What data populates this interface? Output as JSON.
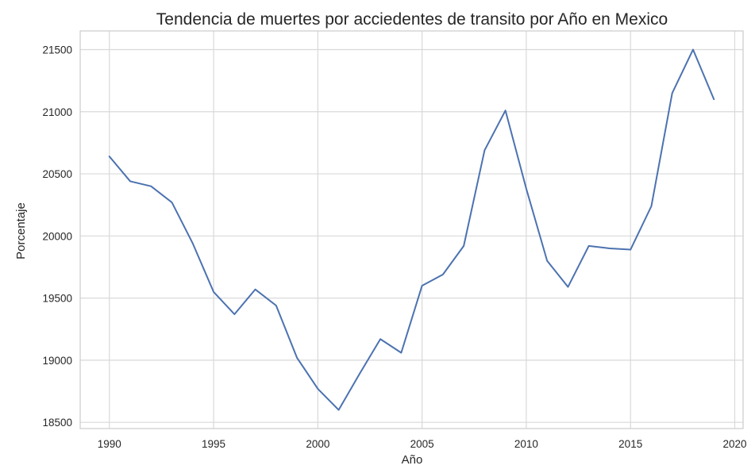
{
  "chart_data": {
    "type": "line",
    "title": "Tendencia de muertes por acciedentes de transito por Año en Mexico",
    "xlabel": "Año",
    "ylabel": "Porcentaje",
    "xlim": [
      1988.6,
      2020.4
    ],
    "ylim": [
      18450,
      21650
    ],
    "xticks": [
      "1990",
      "1995",
      "2000",
      "2005",
      "2010",
      "2015",
      "2020"
    ],
    "yticks": [
      "18500",
      "19000",
      "19500",
      "20000",
      "20500",
      "21000",
      "21500"
    ],
    "grid": true,
    "series": [
      {
        "color": "#4c72b0",
        "x": [
          1990,
          1991,
          1992,
          1993,
          1994,
          1995,
          1996,
          1997,
          1998,
          1999,
          2000,
          2001,
          2002,
          2003,
          2004,
          2005,
          2006,
          2007,
          2008,
          2009,
          2010,
          2011,
          2012,
          2013,
          2014,
          2015,
          2016,
          2017,
          2018,
          2019
        ],
        "y": [
          20640,
          20440,
          20400,
          20270,
          19940,
          19550,
          19370,
          19570,
          19440,
          19020,
          18770,
          18600,
          18890,
          19170,
          19060,
          19600,
          19690,
          19920,
          20690,
          21010,
          20380,
          19800,
          19590,
          19920,
          19900,
          19890,
          20240,
          21150,
          21500,
          21100
        ]
      }
    ]
  }
}
